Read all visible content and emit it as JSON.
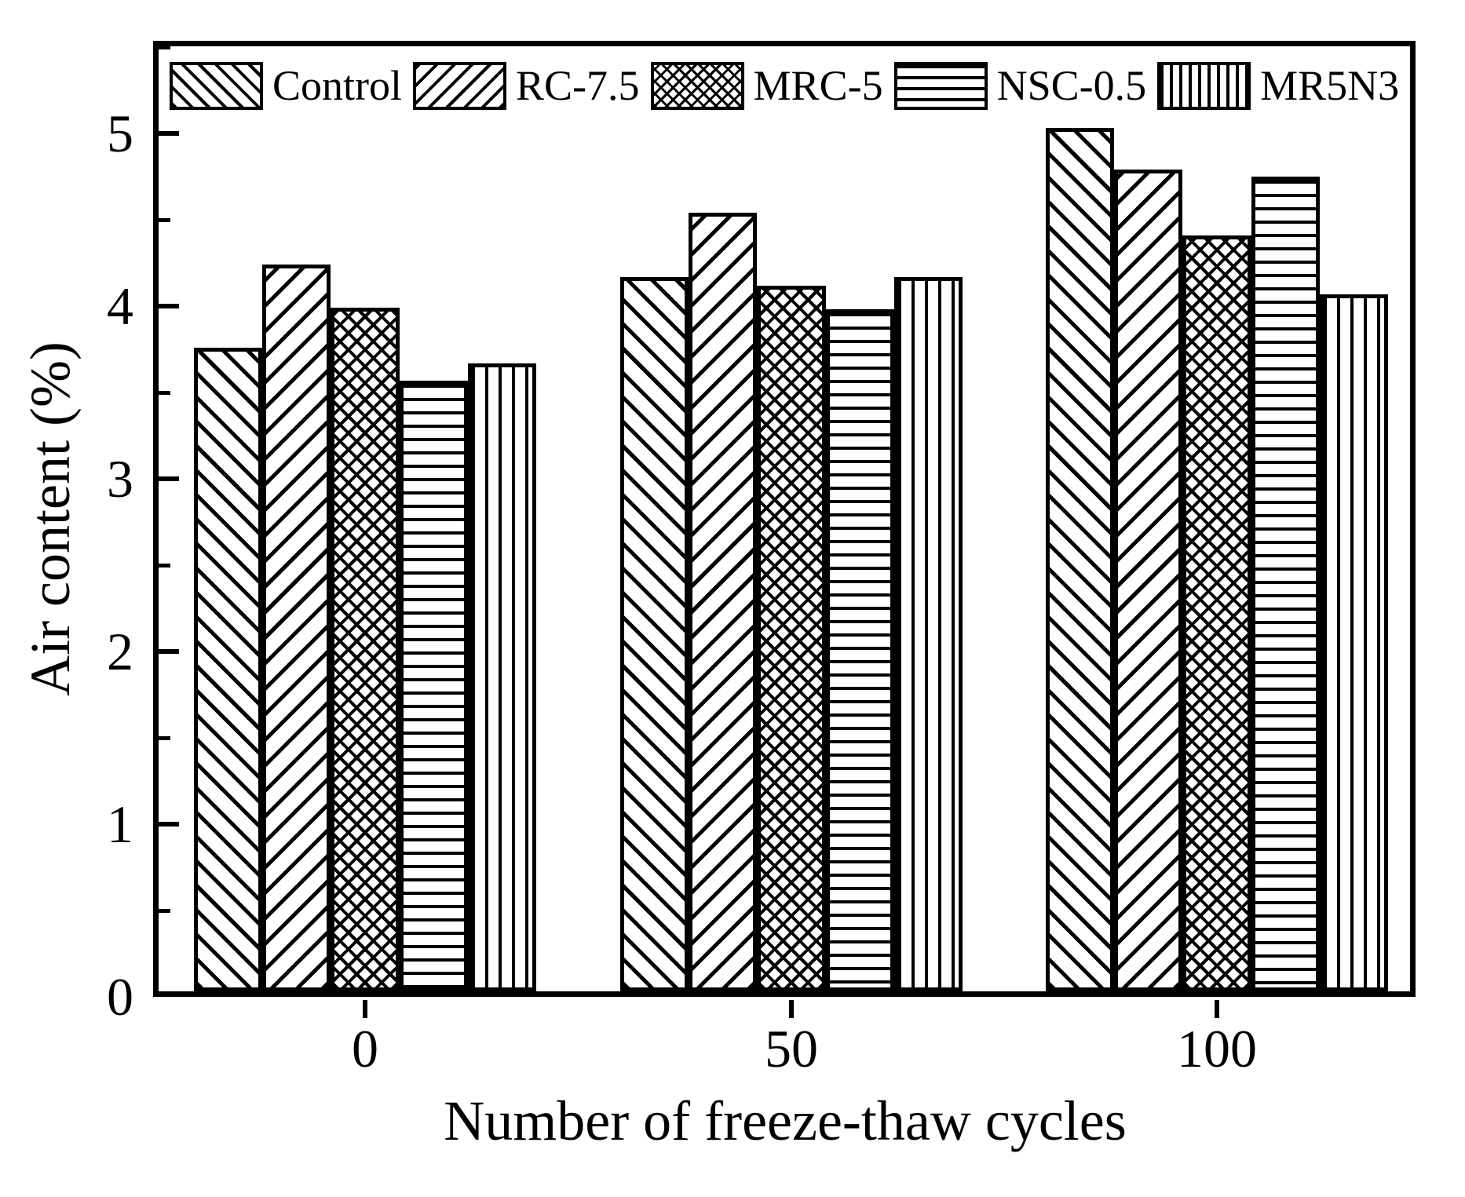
{
  "chart_data": {
    "type": "bar",
    "title": "",
    "xlabel": "Number of freeze-thaw cycles",
    "ylabel": "Air content (%)",
    "categories": [
      "0",
      "50",
      "100"
    ],
    "series": [
      {
        "name": "Control",
        "hatch": "diagonal-forward",
        "values": [
          3.76,
          4.17,
          5.03
        ]
      },
      {
        "name": "RC-7.5",
        "hatch": "diagonal-backward",
        "values": [
          4.24,
          4.54,
          4.79
        ]
      },
      {
        "name": "MRC-5",
        "hatch": "crosshatch",
        "values": [
          3.99,
          4.12,
          4.41
        ]
      },
      {
        "name": "NSC-0.5",
        "hatch": "horizontal-lines",
        "values": [
          3.57,
          3.98,
          4.75
        ]
      },
      {
        "name": "MR5N3",
        "hatch": "vertical-lines",
        "values": [
          3.67,
          4.17,
          4.07
        ]
      }
    ],
    "ylim": [
      0,
      5.54
    ],
    "yticks_major": [
      0,
      1,
      2,
      3,
      4,
      5
    ],
    "yticks_minor": [
      0.5,
      1.5,
      2.5,
      3.5,
      4.5,
      5.5
    ],
    "ytick_labels": [
      "0",
      "1",
      "2",
      "3",
      "4",
      "5"
    ],
    "legend_position": "top-inside",
    "grid": false,
    "colors": {
      "foreground": "#000000",
      "background": "#ffffff"
    }
  }
}
